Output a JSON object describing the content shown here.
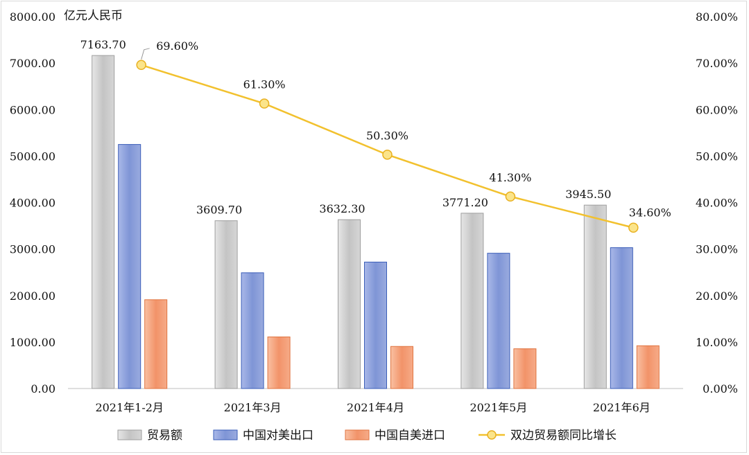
{
  "chart_data": {
    "type": "bar",
    "categories": [
      "2021年1-2月",
      "2021年3月",
      "2021年4月",
      "2021年5月",
      "2021年6月"
    ],
    "y_unit_label": "亿元人民币",
    "y_left": {
      "ylim": [
        0,
        8000
      ],
      "ticks": [
        "0.00",
        "1000.00",
        "2000.00",
        "3000.00",
        "4000.00",
        "5000.00",
        "6000.00",
        "7000.00",
        "8000.00"
      ]
    },
    "y_right": {
      "ylim": [
        0,
        80
      ],
      "ticks": [
        "0.00%",
        "10.00%",
        "20.00%",
        "30.00%",
        "40.00%",
        "50.00%",
        "60.00%",
        "70.00%",
        "80.00%"
      ]
    },
    "series": [
      {
        "name": "贸易额",
        "kind": "bar",
        "axis": "left",
        "color": "#c9c9c9",
        "values": [
          7163.7,
          3609.7,
          3632.3,
          3771.2,
          3945.5
        ],
        "labels": [
          "7163.70",
          "3609.70",
          "3632.30",
          "3771.20",
          "3945.50"
        ]
      },
      {
        "name": "中国对美出口",
        "kind": "bar",
        "axis": "left",
        "color": "#8fa2dc",
        "values": [
          5250,
          2490,
          2720,
          2910,
          3030
        ]
      },
      {
        "name": "中国自美进口",
        "kind": "bar",
        "axis": "left",
        "color": "#f4a07a",
        "values": [
          1910,
          1110,
          905,
          855,
          920
        ]
      },
      {
        "name": "双边贸易额同比增长",
        "kind": "line",
        "axis": "right",
        "color": "#f2c12e",
        "values": [
          69.6,
          61.3,
          50.3,
          41.3,
          34.6
        ],
        "labels": [
          "69.60%",
          "61.30%",
          "50.30%",
          "41.30%",
          "34.60%"
        ]
      }
    ],
    "legend_position": "bottom",
    "grid": false
  }
}
